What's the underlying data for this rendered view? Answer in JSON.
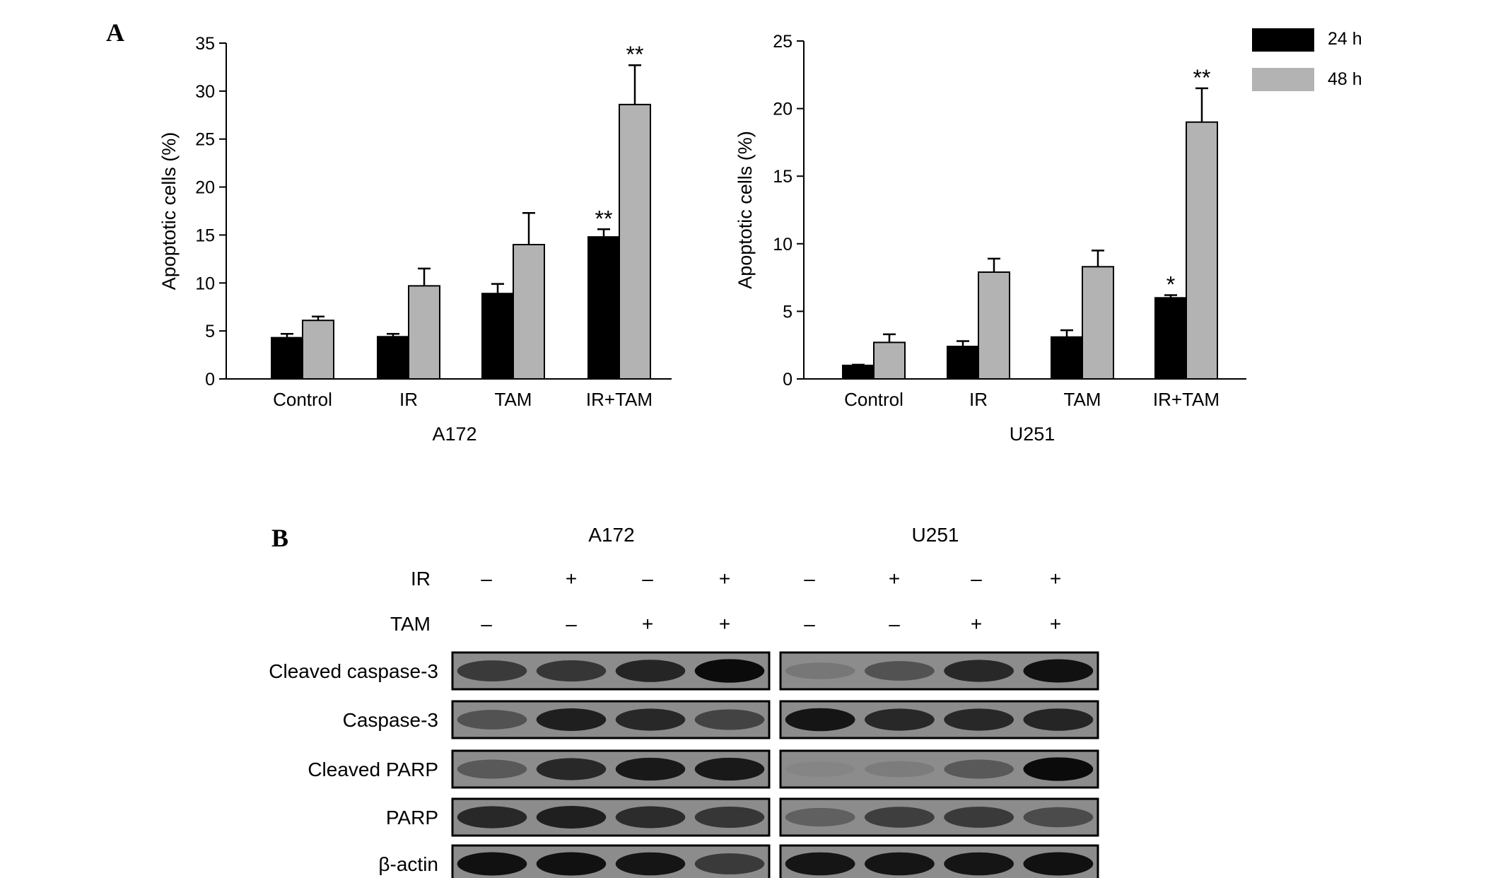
{
  "panels": {
    "a_label": "A",
    "b_label": "B"
  },
  "legend": {
    "items": [
      {
        "label": "24 h",
        "color": "#000000"
      },
      {
        "label": "48 h",
        "color": "#b3b3b3"
      }
    ]
  },
  "colors": {
    "24h": "#000000",
    "48h": "#b3b3b3",
    "blot_bg": "#8c8c8c"
  },
  "chart_data": [
    {
      "type": "bar",
      "xlabel": "A172",
      "ylabel": "Apoptotic  cells (%)",
      "ylim": [
        0,
        35
      ],
      "yticks": [
        "0",
        "5",
        "10",
        "15",
        "20",
        "25",
        "30",
        "35"
      ],
      "categories": [
        "Control",
        "IR",
        "TAM",
        "IR+TAM"
      ],
      "series": [
        {
          "name": "24 h",
          "values": [
            4.3,
            4.4,
            8.9,
            14.8
          ],
          "errors": [
            0.4,
            0.3,
            1.0,
            0.8
          ],
          "annotations": [
            "",
            "",
            "",
            "**"
          ]
        },
        {
          "name": "48 h",
          "values": [
            6.1,
            9.7,
            14.0,
            28.6
          ],
          "errors": [
            0.4,
            1.8,
            3.3,
            4.1
          ],
          "annotations": [
            "",
            "",
            "",
            "**"
          ]
        }
      ]
    },
    {
      "type": "bar",
      "xlabel": "U251",
      "ylabel": "Apoptotic  cells (%)",
      "ylim": [
        0,
        25
      ],
      "yticks": [
        "0",
        "5",
        "10",
        "15",
        "20",
        "25"
      ],
      "categories": [
        "Control",
        "IR",
        "TAM",
        "IR+TAM"
      ],
      "series": [
        {
          "name": "24 h",
          "values": [
            1.0,
            2.4,
            3.1,
            6.0
          ],
          "errors": [
            0.05,
            0.4,
            0.5,
            0.2
          ],
          "annotations": [
            "",
            "",
            "",
            "*"
          ]
        },
        {
          "name": "48 h",
          "values": [
            2.7,
            7.9,
            8.3,
            19.0
          ],
          "errors": [
            0.6,
            1.0,
            1.2,
            2.5
          ],
          "annotations": [
            "",
            "",
            "",
            "**"
          ]
        }
      ]
    }
  ],
  "blot": {
    "groups": [
      "A172",
      "U251"
    ],
    "conditions": [
      {
        "label": "IR",
        "signs": [
          "–",
          "+",
          "–",
          "+",
          "–",
          "+",
          "–",
          "+"
        ]
      },
      {
        "label": "TAM",
        "signs": [
          "–",
          "–",
          "+",
          "+",
          "–",
          "–",
          "+",
          "+"
        ]
      }
    ],
    "rows": [
      {
        "label": "Cleaved caspase-3",
        "intensities": [
          [
            0.7,
            0.72,
            0.82,
            0.95
          ],
          [
            0.25,
            0.55,
            0.8,
            0.92
          ]
        ]
      },
      {
        "label": "Caspase-3",
        "intensities": [
          [
            0.55,
            0.85,
            0.8,
            0.65
          ],
          [
            0.9,
            0.8,
            0.8,
            0.82
          ]
        ]
      },
      {
        "label": "Cleaved PARP",
        "intensities": [
          [
            0.5,
            0.8,
            0.88,
            0.88
          ],
          [
            0.1,
            0.2,
            0.5,
            0.95
          ]
        ]
      },
      {
        "label": "PARP",
        "intensities": [
          [
            0.8,
            0.85,
            0.78,
            0.72
          ],
          [
            0.45,
            0.68,
            0.7,
            0.6
          ]
        ]
      },
      {
        "label": "β-actin",
        "intensities": [
          [
            0.92,
            0.92,
            0.9,
            0.7
          ],
          [
            0.9,
            0.9,
            0.9,
            0.92
          ]
        ]
      }
    ]
  }
}
